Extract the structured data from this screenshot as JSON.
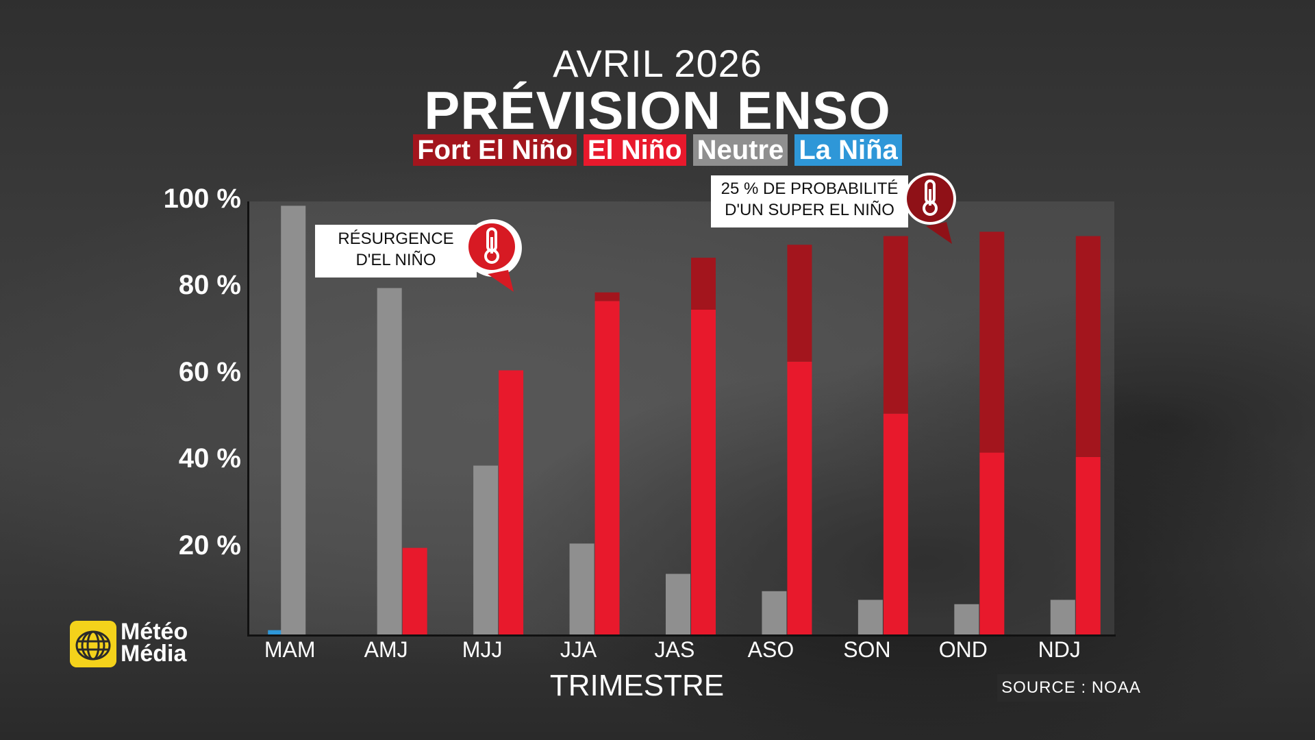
{
  "header": {
    "subtitle": "AVRIL 2026",
    "title": "PRÉVISION ENSO"
  },
  "legend": [
    {
      "label": "Fort El Niño",
      "color": "#a3151d"
    },
    {
      "label": "El Niño",
      "color": "#e8192c"
    },
    {
      "label": "Neutre",
      "color": "#8f8f8f"
    },
    {
      "label": "La Niña",
      "color": "#2e97d8"
    }
  ],
  "callouts": {
    "resurgence": {
      "line1": "RÉSURGENCE",
      "line2": "D'EL NIÑO",
      "icon": "thermometer-icon"
    },
    "super": {
      "line1": "25 % DE PROBABILITÉ",
      "line2": "D'UN SUPER EL NIÑO",
      "icon": "thermometer-icon"
    }
  },
  "brand": {
    "line1": "Météo",
    "line2": "Média",
    "logo_color": "#f4d21b"
  },
  "source": "SOURCE : NOAA",
  "chart_data": {
    "type": "bar",
    "stacked_el_nino": true,
    "xlabel": "TRIMESTRE",
    "ylabel": "",
    "ylim": [
      0,
      100
    ],
    "y_ticks": [
      "100 %",
      "80 %",
      "60 %",
      "40 %",
      "20 %"
    ],
    "y_tick_values": [
      100,
      80,
      60,
      40,
      20
    ],
    "categories": [
      "MAM",
      "AMJ",
      "MJJ",
      "JJA",
      "JAS",
      "ASO",
      "SON",
      "OND",
      "NDJ"
    ],
    "series": [
      {
        "name": "La Niña",
        "color": "#2e97d8",
        "values": [
          1,
          0,
          0,
          0,
          0,
          0,
          0,
          0,
          0
        ]
      },
      {
        "name": "Neutre",
        "color": "#8f8f8f",
        "values": [
          99,
          80,
          39,
          21,
          14,
          10,
          8,
          7,
          8
        ]
      },
      {
        "name": "El Niño",
        "color": "#e8192c",
        "values": [
          0,
          20,
          61,
          77,
          75,
          63,
          51,
          42,
          41
        ]
      },
      {
        "name": "Fort El Niño",
        "color": "#a3151d",
        "values": [
          0,
          0,
          0,
          2,
          12,
          27,
          41,
          51,
          51
        ]
      }
    ]
  }
}
